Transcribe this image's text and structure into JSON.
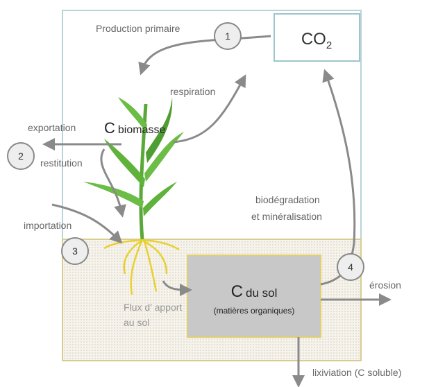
{
  "title_labels": {
    "production": "Production primaire",
    "respiration": "respiration",
    "exportation": "exportation",
    "restitution": "restitution",
    "importation": "importation",
    "biodegradation": [
      "biodégradation",
      "et minéralisation"
    ],
    "flux": [
      "Flux d’ apport",
      "au sol"
    ],
    "erosion": "érosion",
    "lixiviation": "lixiviation (C soluble)"
  },
  "co2": {
    "base": "CO",
    "sub": "2"
  },
  "biomasse": {
    "letter": "C",
    "text": "biomasse"
  },
  "sol": {
    "letter": "C",
    "text": "du sol",
    "detail": "(matières organiques)"
  },
  "nodes": [
    "1",
    "2",
    "3",
    "4"
  ]
}
